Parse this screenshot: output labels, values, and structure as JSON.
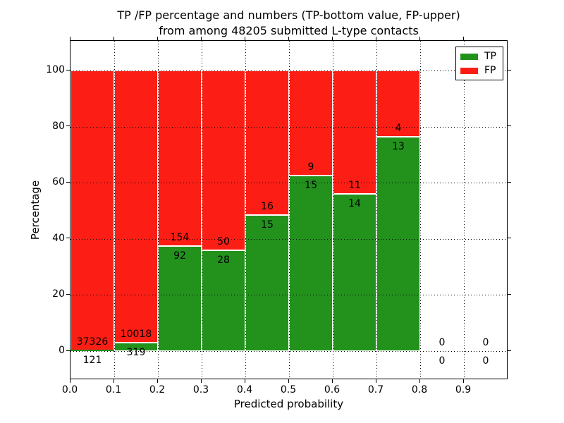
{
  "figure": {
    "title_line1": "TP /FP percentage and numbers (TP-bottom value, FP-upper)",
    "title_line2": "from among 48205 submitted L-type contacts"
  },
  "chart_data": {
    "type": "bar",
    "stacked": true,
    "normalized": "each bar totals 100%",
    "title": "TP /FP percentage and numbers (TP-bottom value, FP-upper) from among 48205 submitted L-type contacts",
    "xlabel": "Predicted probability",
    "ylabel": "Percentage",
    "xlim": [
      0.0,
      1.0
    ],
    "ylim": [
      -10.5,
      110.5
    ],
    "x_tick_labels": [
      "0.0",
      "0.1",
      "0.2",
      "0.3",
      "0.4",
      "0.5",
      "0.6",
      "0.7",
      "0.8",
      "0.9"
    ],
    "y_tick_values": [
      0,
      20,
      40,
      60,
      80,
      100
    ],
    "grid": "dotted, drawn over bars",
    "colors": {
      "tp": "#22921d",
      "fp": "#fc1e15",
      "bar_edge": "#ffffff"
    },
    "legend": {
      "position": "upper right",
      "entries": [
        {
          "label": "TP",
          "color": "#22921d"
        },
        {
          "label": "FP",
          "color": "#fc1e15"
        }
      ]
    },
    "bins": [
      {
        "range": [
          0.0,
          0.1
        ],
        "tp": 121,
        "fp": 37326
      },
      {
        "range": [
          0.1,
          0.2
        ],
        "tp": 319,
        "fp": 10018
      },
      {
        "range": [
          0.2,
          0.3
        ],
        "tp": 92,
        "fp": 154
      },
      {
        "range": [
          0.3,
          0.4
        ],
        "tp": 28,
        "fp": 50
      },
      {
        "range": [
          0.4,
          0.5
        ],
        "tp": 15,
        "fp": 16
      },
      {
        "range": [
          0.5,
          0.6
        ],
        "tp": 15,
        "fp": 9
      },
      {
        "range": [
          0.6,
          0.7
        ],
        "tp": 14,
        "fp": 11
      },
      {
        "range": [
          0.7,
          0.8
        ],
        "tp": 13,
        "fp": 4
      },
      {
        "range": [
          0.8,
          0.9
        ],
        "tp": 0,
        "fp": 0
      },
      {
        "range": [
          0.9,
          1.0
        ],
        "tp": 0,
        "fp": 0
      }
    ]
  }
}
